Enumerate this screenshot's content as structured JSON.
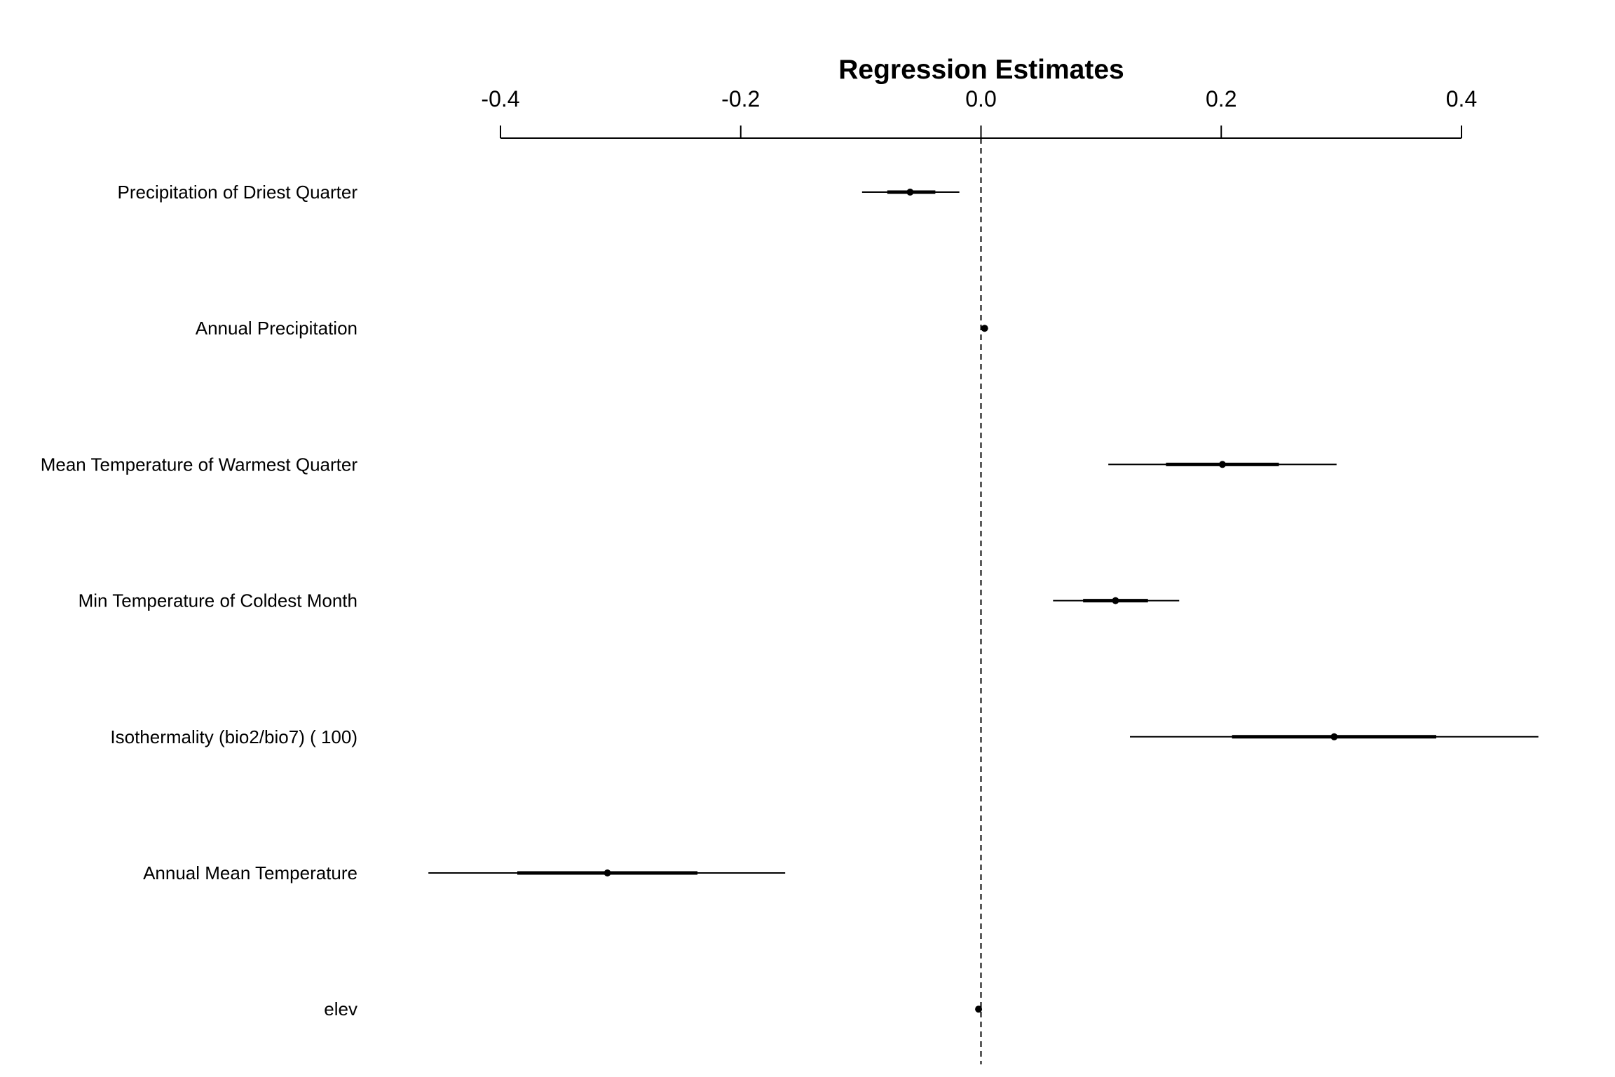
{
  "chart_data": {
    "type": "scatter",
    "subtype": "coefficient-plot",
    "title": "Regression Estimates",
    "xlabel": "",
    "ylabel": "",
    "xlim": [
      -0.4,
      0.4
    ],
    "x_ticks": [
      -0.4,
      -0.2,
      0.0,
      0.2,
      0.4
    ],
    "x_tick_labels": [
      "-0.4",
      "-0.2",
      "0.0",
      "0.2",
      "0.4"
    ],
    "axis_position": "top",
    "grid": false,
    "reference_line": 0.0,
    "reference_line_style": "dashed",
    "point_color": "#000000",
    "rows": [
      {
        "label": "Precipitation of Driest Quarter",
        "estimate": -0.059,
        "inner": [
          -0.078,
          -0.038
        ],
        "outer": [
          -0.099,
          -0.018
        ]
      },
      {
        "label": "Annual Precipitation",
        "estimate": 0.003,
        "inner": [
          0.002,
          0.004
        ],
        "outer": [
          0.001,
          0.005
        ]
      },
      {
        "label": "Mean Temperature of Warmest Quarter",
        "estimate": 0.201,
        "inner": [
          0.154,
          0.248
        ],
        "outer": [
          0.106,
          0.296
        ]
      },
      {
        "label": "Min Temperature of Coldest Month",
        "estimate": 0.112,
        "inner": [
          0.085,
          0.139
        ],
        "outer": [
          0.06,
          0.165
        ]
      },
      {
        "label": "Isothermality (bio2/bio7) (  100)",
        "estimate": 0.294,
        "inner": [
          0.209,
          0.379
        ],
        "outer": [
          0.124,
          0.464
        ]
      },
      {
        "label": "Annual Mean Temperature",
        "estimate": -0.311,
        "inner": [
          -0.386,
          -0.236
        ],
        "outer": [
          -0.46,
          -0.163
        ]
      },
      {
        "label": "elev",
        "estimate": -0.002,
        "inner": [
          -0.003,
          -0.001
        ],
        "outer": [
          -0.004,
          0.0
        ]
      }
    ]
  }
}
